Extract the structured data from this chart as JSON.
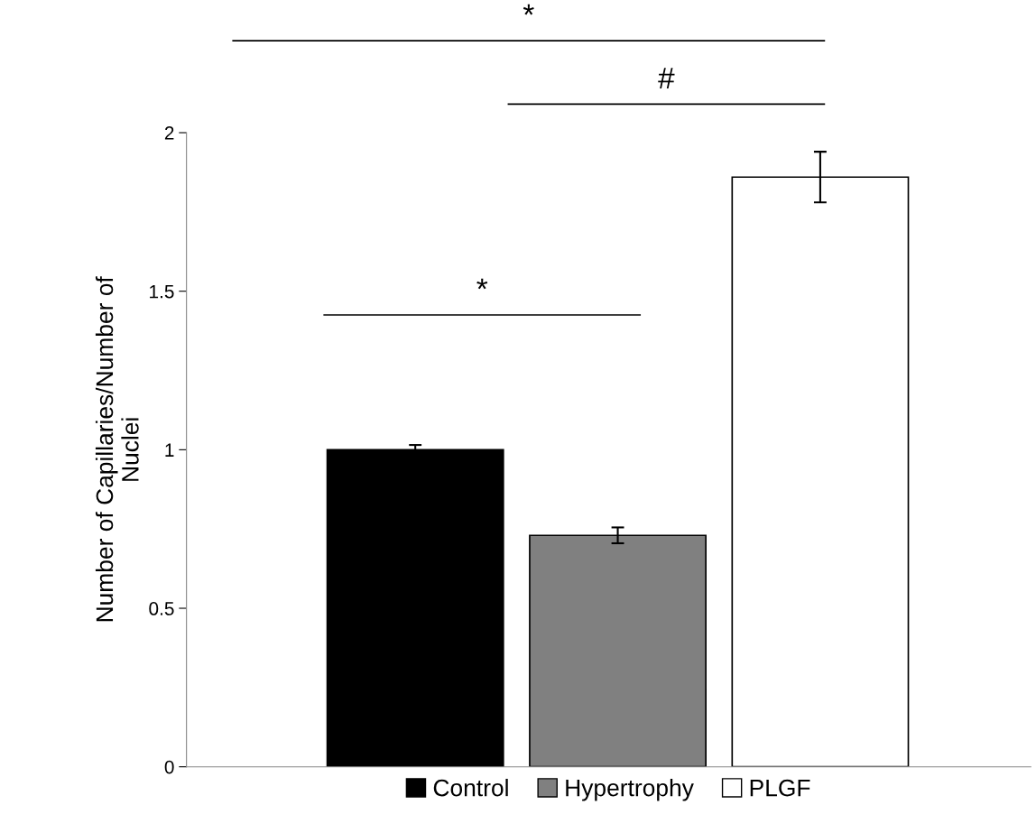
{
  "chart_data": {
    "type": "bar",
    "ylabel": "Number of Capillaries/Number of\nNuclei",
    "categories": [
      null
    ],
    "series": [
      {
        "name": "Control",
        "color": "#000000",
        "values": [
          1.0
        ],
        "errors": [
          0.015
        ]
      },
      {
        "name": "Hypertrophy",
        "color": "#808080",
        "values": [
          0.73
        ],
        "errors": [
          0.025
        ]
      },
      {
        "name": "PLGF",
        "color": "#ffffff",
        "values": [
          1.86
        ],
        "errors": [
          0.08
        ]
      }
    ],
    "ylim": [
      0,
      2
    ],
    "yticks": [
      0,
      0.5,
      1,
      1.5,
      2
    ],
    "legend": "bottom",
    "grid": false,
    "tick_labels": "y",
    "annotations": [
      "*",
      "#",
      "*"
    ]
  }
}
